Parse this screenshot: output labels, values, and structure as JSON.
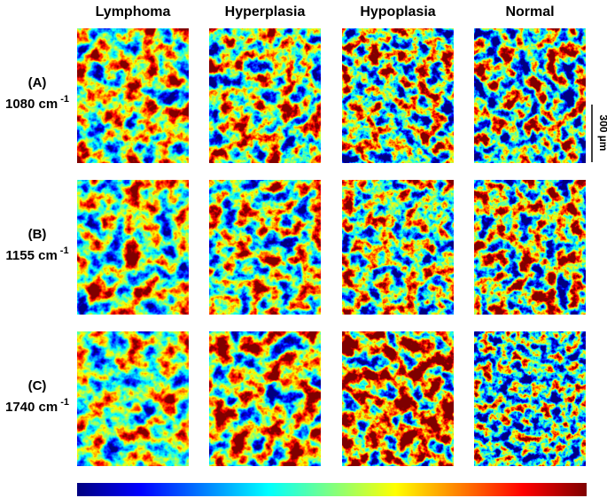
{
  "columns": [
    "Lymphoma",
    "Hyperplasia",
    "Hypoplasia",
    "Normal"
  ],
  "rows": [
    {
      "label": "(A)",
      "wavenumber": "1080 cm",
      "unit_exponent": "-1"
    },
    {
      "label": "(B)",
      "wavenumber": "1155 cm",
      "unit_exponent": "-1"
    },
    {
      "label": "(C)",
      "wavenumber": "1740 cm",
      "unit_exponent": "-1"
    }
  ],
  "scale_bar": "300 µm"
}
